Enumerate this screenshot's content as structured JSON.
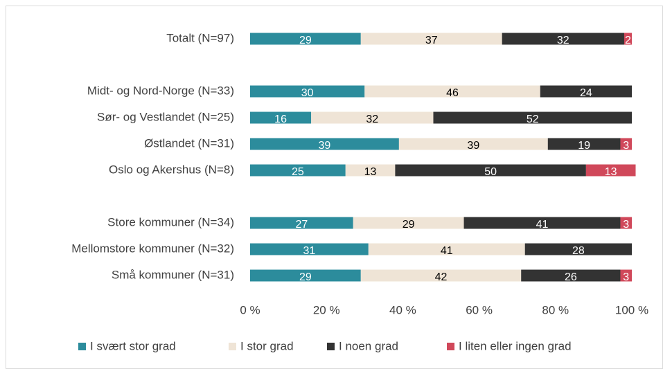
{
  "chart_data": {
    "type": "stacked_barh",
    "categories": [
      "Totalt (N=97)",
      null,
      "Midt- og Nord-Norge (N=33)",
      "Sør- og Vestlandet (N=25)",
      "Østlandet (N=31)",
      "Oslo og Akershus (N=8)",
      null,
      "Store kommuner (N=34)",
      "Mellomstore kommuner (N=32)",
      "Små kommuner (N=31)"
    ],
    "series": [
      {
        "name": "I svært stor grad",
        "color": "#2c8c9c",
        "values": [
          29,
          null,
          30,
          16,
          39,
          25,
          null,
          27,
          31,
          29
        ]
      },
      {
        "name": "I stor grad",
        "color": "#efe4d6",
        "values": [
          37,
          null,
          46,
          32,
          39,
          13,
          null,
          29,
          41,
          42
        ]
      },
      {
        "name": "I noen grad",
        "color": "#333333",
        "values": [
          32,
          null,
          24,
          52,
          19,
          50,
          null,
          41,
          28,
          26
        ]
      },
      {
        "name": "I liten eller ingen grad",
        "color": "#d0485a",
        "values": [
          2,
          null,
          null,
          null,
          3,
          13,
          null,
          3,
          null,
          3
        ]
      }
    ],
    "xlim": [
      0,
      100
    ],
    "xticks": [
      {
        "value": 0,
        "label": "0 %"
      },
      {
        "value": 20,
        "label": "20 %"
      },
      {
        "value": 40,
        "label": "40 %"
      },
      {
        "value": 60,
        "label": "60 %"
      },
      {
        "value": 80,
        "label": "80 %"
      },
      {
        "value": 100,
        "label": "100 %"
      }
    ],
    "legend": "bottom"
  }
}
